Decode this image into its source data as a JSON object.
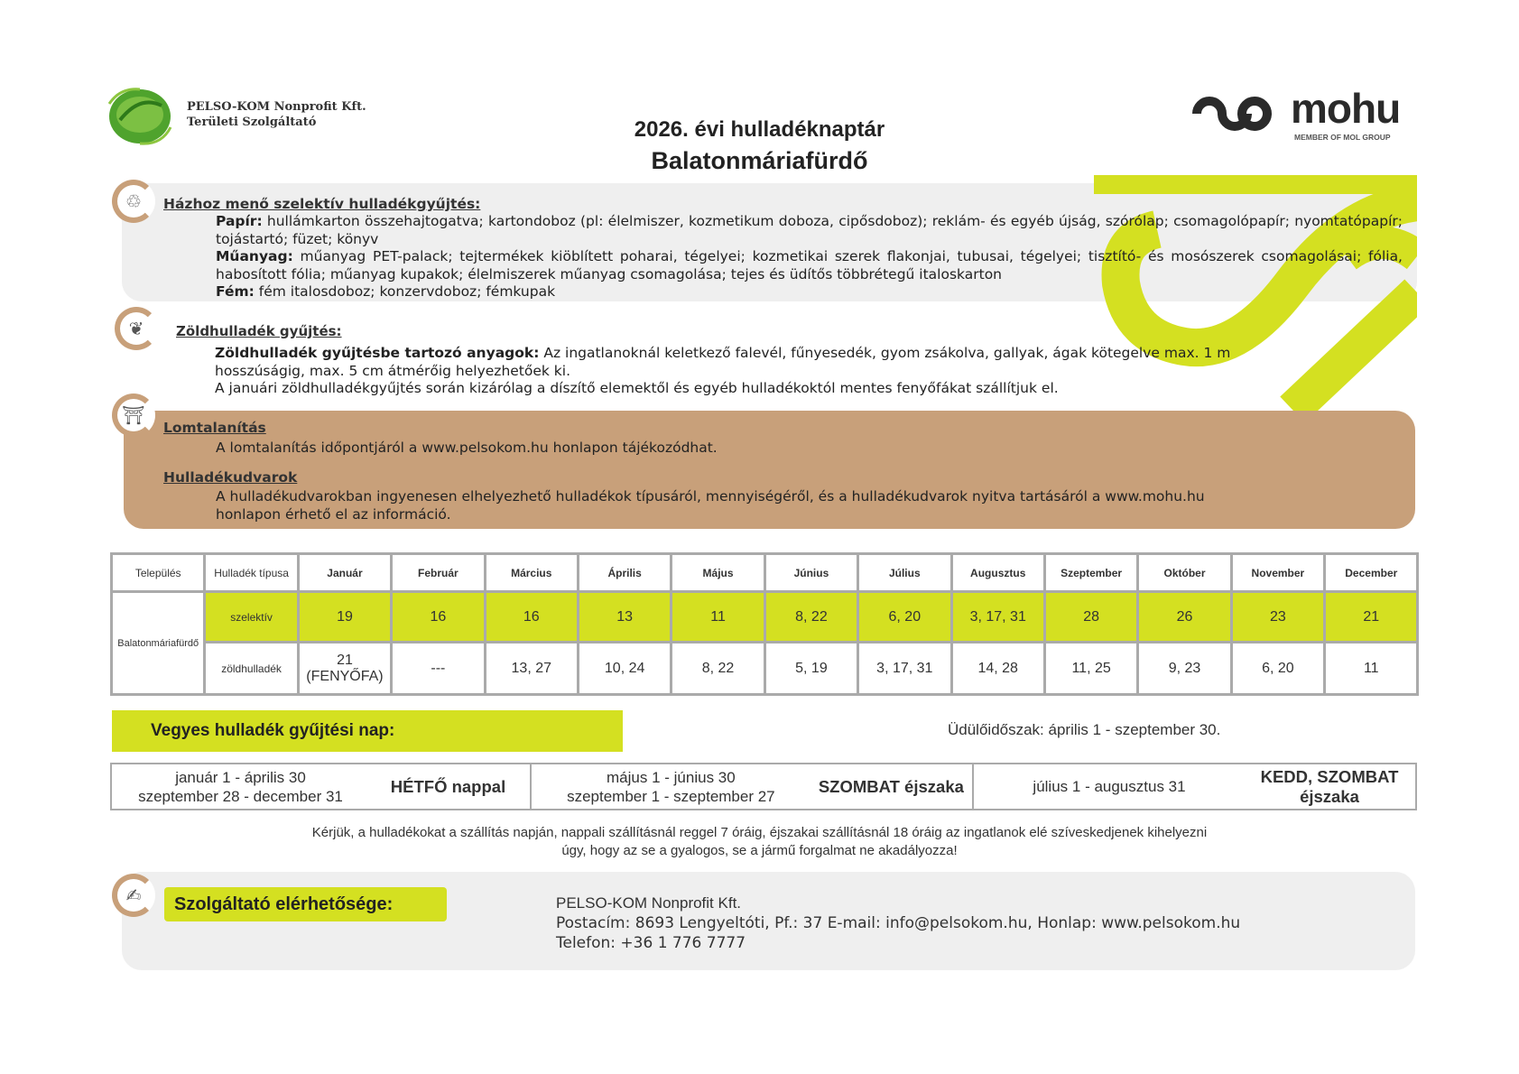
{
  "header": {
    "company_name": "PELSO-KOM Nonprofit Kft.",
    "company_sub": "Területi Szolgáltató",
    "title": "2026. évi hulladéknaptár",
    "subtitle": "Balatonmáriafürdő",
    "mohu_logo": "mohu",
    "mohu_tagline": "MEMBER OF MOL GROUP"
  },
  "selective": {
    "heading": "Házhoz menő szelektív hulladékgyűjtés:",
    "paper_label": "Papír:",
    "paper_text": "hullámkarton összehajtogatva; kartondoboz (pl: élelmiszer, kozmetikum doboza, cipősdoboz); reklám- és egyéb újság, szórólap; csomagolópapír; nyomtatópapír; tojástartó; füzet; könyv",
    "plastic_label": "Műanyag:",
    "plastic_text": "műanyag PET-palack; tejtermékek kiöblített poharai, tégelyei; kozmetikai szerek flakonjai, tubusai, tégelyei; tisztító- és mosószerek csomagolásai; fólia, habosított fólia; műanyag kupakok; élelmiszerek műanyag csomagolása; tejes és üdítős többrétegű italoskarton",
    "metal_label": "Fém:",
    "metal_text": "fém italosdoboz; konzervdoboz; fémkupak"
  },
  "green": {
    "heading": "Zöldhulladék gyűjtés:",
    "materials_label": "Zöldhulladék gyűjtésbe tartozó anyagok:",
    "materials_text": "Az ingatlanoknál keletkező falevél, fűnyesedék, gyom zsákolva, gallyak, ágak kötegelve max. 1 m hosszúságig, max. 5 cm átmérőig helyezhetőek ki.",
    "january_note": "A januári zöldhulladékgyűjtés során kizárólag a díszítő elemektől és egyéb hulladékoktól mentes fenyőfákat szállítjuk el."
  },
  "bulky": {
    "heading": "Lomtalanítás",
    "text": "A lomtalanítás időpontjáról a www.pelsokom.hu honlapon tájékozódhat.",
    "yards_heading": "Hulladékudvarok",
    "yards_text": "A hulladékudvarokban ingyenesen elhelyezhető hulladékok típusáról, mennyiségéről, és a hulladékudvarok nyitva tartásáról a www.mohu.hu honlapon érhető el az információ."
  },
  "calendar": {
    "col_settlement": "Település",
    "col_type": "Hulladék típusa",
    "months": [
      "Január",
      "Február",
      "Március",
      "Április",
      "Május",
      "Június",
      "Július",
      "Augusztus",
      "Szeptember",
      "Október",
      "November",
      "December"
    ],
    "settlement": "Balatonmáriafürdő",
    "rows": [
      {
        "type": "szelektív",
        "dates": [
          "19",
          "16",
          "16",
          "13",
          "11",
          "8, 22",
          "6, 20",
          "3, 17, 31",
          "28",
          "26",
          "23",
          "21"
        ]
      },
      {
        "type": "zöldhulladék",
        "dates": [
          "21 (FENYŐFA)",
          "---",
          "13, 27",
          "10, 24",
          "8, 22",
          "5, 19",
          "3, 17, 31",
          "14, 28",
          "11, 25",
          "9, 23",
          "6, 20",
          "11"
        ]
      }
    ]
  },
  "mixed": {
    "label": "Vegyes hulladék gyűjtési nap:",
    "holiday": "Üdülőidőszak: április 1 - szeptember 30.",
    "periods": [
      {
        "range1": "január 1 - április 30",
        "range2": "szeptember 28 - december 31",
        "day": "HÉTFŐ nappal"
      },
      {
        "range1": "május 1 - június 30",
        "range2": "szeptember 1 - szeptember 27",
        "day": "SZOMBAT éjszaka"
      },
      {
        "range1": "július 1 - augusztus 31",
        "range2": "",
        "day": "KEDD, SZOMBAT éjszaka"
      }
    ],
    "notice1": "Kérjük, a hulladékokat a szállítás napján, nappali szállításnál reggel 7 óráig, éjszakai szállításnál 18 óráig az ingatlanok elé szíveskedjenek kihelyezni",
    "notice2": "úgy, hogy az se a gyalogos, se a jármű forgalmat ne akadályozza!"
  },
  "contact": {
    "label": "Szolgáltató elérhetősége:",
    "line1": "PELSO-KOM Nonprofit Kft.",
    "line2": "Postacím: 8693 Lengyeltóti, Pf.: 37 E-mail: info@pelsokom.hu, Honlap: www.pelsokom.hu",
    "line3": "Telefon: +36 1 776 7777"
  },
  "colors": {
    "accent_green": "#d4e021",
    "brown": "#c8a07a",
    "panel_gray": "#efefef"
  }
}
